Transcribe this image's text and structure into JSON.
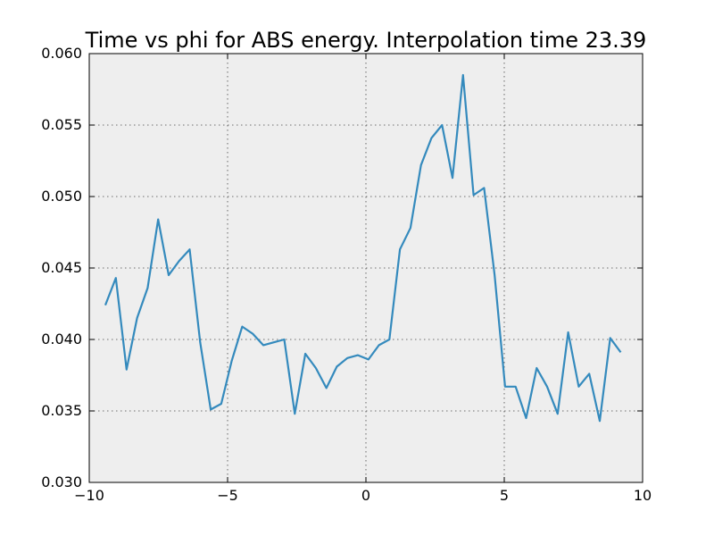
{
  "chart_data": {
    "type": "line",
    "title": "Time vs phi for ABS energy. Interpolation time 23.39",
    "xlabel": "",
    "ylabel": "",
    "xlim": [
      -10,
      10
    ],
    "ylim": [
      0.03,
      0.06
    ],
    "xticks": [
      -10,
      -5,
      0,
      5,
      10
    ],
    "xtick_labels": [
      "−10",
      "−5",
      "0",
      "5",
      "10"
    ],
    "yticks": [
      0.03,
      0.035,
      0.04,
      0.045,
      0.05,
      0.055,
      0.06
    ],
    "ytick_labels": [
      "0.030",
      "0.035",
      "0.040",
      "0.045",
      "0.050",
      "0.055",
      "0.060"
    ],
    "grid": true,
    "background_color": "#eeeeee",
    "series": [
      {
        "color": "#348abd",
        "x": [
          -9.42,
          -9.04,
          -8.65,
          -8.27,
          -7.89,
          -7.51,
          -7.13,
          -6.75,
          -6.37,
          -5.99,
          -5.61,
          -5.23,
          -4.85,
          -4.47,
          -4.09,
          -3.71,
          -3.33,
          -2.95,
          -2.57,
          -2.19,
          -1.81,
          -1.43,
          -1.05,
          -0.67,
          -0.29,
          0.09,
          0.47,
          0.85,
          1.23,
          1.61,
          1.99,
          2.37,
          2.75,
          3.13,
          3.51,
          3.89,
          4.27,
          4.65,
          5.03,
          5.41,
          5.79,
          6.17,
          6.55,
          6.93,
          7.31,
          7.69,
          8.07,
          8.45,
          8.83,
          9.21
        ],
        "y": [
          0.0424,
          0.0443,
          0.0379,
          0.0415,
          0.0436,
          0.0484,
          0.0445,
          0.0455,
          0.0463,
          0.0398,
          0.0351,
          0.0355,
          0.0385,
          0.0409,
          0.0404,
          0.0396,
          0.0398,
          0.04,
          0.0348,
          0.039,
          0.038,
          0.0366,
          0.0381,
          0.0387,
          0.0389,
          0.0386,
          0.0396,
          0.04,
          0.0463,
          0.0478,
          0.0522,
          0.0541,
          0.055,
          0.0513,
          0.0585,
          0.0501,
          0.0506,
          0.0445,
          0.0367,
          0.0367,
          0.0345,
          0.038,
          0.0367,
          0.0348,
          0.0405,
          0.0367,
          0.0376,
          0.0343,
          0.0401,
          0.0391
        ]
      }
    ]
  }
}
